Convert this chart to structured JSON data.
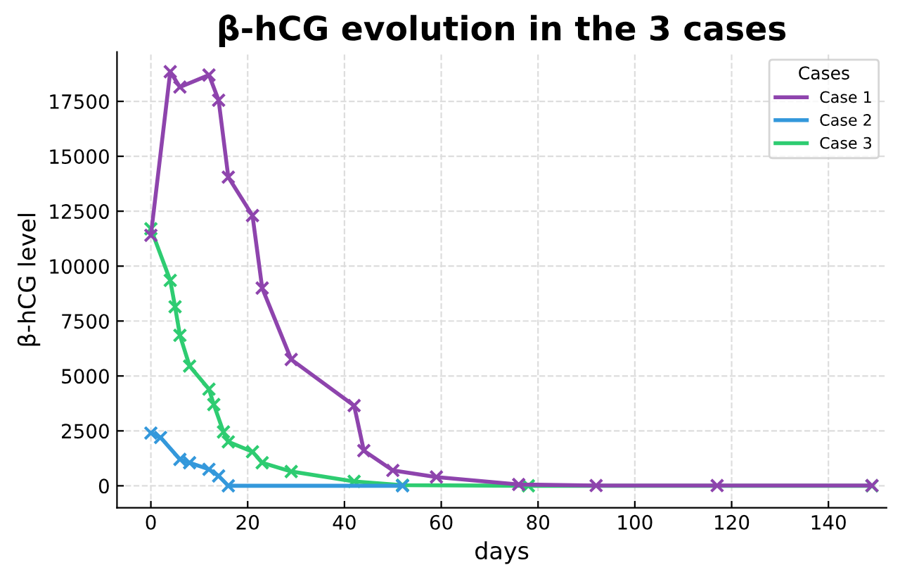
{
  "chart_data": {
    "type": "line",
    "title": "β-hCG evolution in the 3 cases",
    "xlabel": "days",
    "ylabel": "β-hCG level",
    "legend_title": "Cases",
    "series": [
      {
        "name": "Case 1",
        "color": "#8e44ad",
        "x": [
          0,
          4,
          6,
          12,
          14,
          16,
          21,
          23,
          29,
          42,
          44,
          50,
          59,
          76,
          92,
          117,
          149
        ],
        "values": [
          11400,
          18850,
          18150,
          18700,
          17550,
          14050,
          12300,
          9000,
          5750,
          3650,
          1600,
          700,
          400,
          60,
          10,
          10,
          10
        ]
      },
      {
        "name": "Case 2",
        "color": "#3498db",
        "x": [
          0,
          2,
          6,
          8,
          12,
          14,
          16,
          52
        ],
        "values": [
          2400,
          2200,
          1200,
          1050,
          750,
          450,
          0,
          0
        ]
      },
      {
        "name": "Case 3",
        "color": "#2ecc71",
        "x": [
          0,
          4,
          5,
          6,
          8,
          12,
          13,
          15,
          16,
          21,
          23,
          29,
          42,
          52,
          78,
          149
        ],
        "values": [
          11700,
          9350,
          8150,
          6850,
          5450,
          4400,
          3700,
          2450,
          2000,
          1550,
          1050,
          650,
          200,
          30,
          0,
          0
        ]
      }
    ],
    "xlim": [
      -7,
      152
    ],
    "xticks": [
      0,
      20,
      40,
      60,
      80,
      100,
      120,
      140
    ],
    "ylim": [
      -1000,
      19750
    ],
    "yticks": [
      0,
      2500,
      5000,
      7500,
      10000,
      12500,
      15000,
      17500
    ],
    "grid": true,
    "legend": "top right",
    "marker": "cross",
    "line_style": "solid"
  }
}
